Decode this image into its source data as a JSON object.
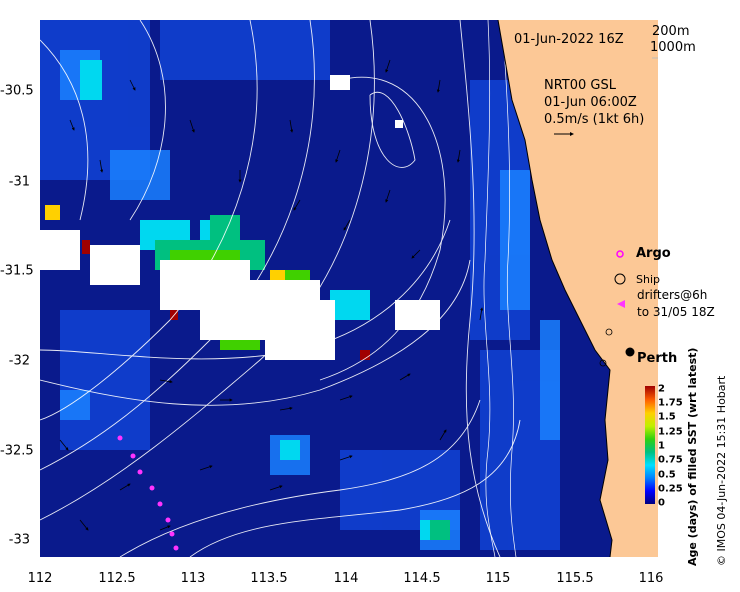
{
  "map": {
    "date_label": "01-Jun-2022 16Z",
    "contour_label_1": "200m",
    "contour_label_2": "1000m",
    "model_line1": "NRT00 GSL",
    "model_line2": "01-Jun 06:00Z",
    "vector_scale": "0.5m/s (1kt 6h)",
    "city": "Perth"
  },
  "legend": {
    "argo": "Argo",
    "ship": "Ship",
    "drifters_line1": "drifters@6h",
    "drifters_line2": "to 31/05 18Z"
  },
  "axes": {
    "x_ticks": [
      "112",
      "112.5",
      "113",
      "113.5",
      "114",
      "114.5",
      "115",
      "115.5",
      "116"
    ],
    "y_ticks": [
      "-30.5",
      "-31",
      "-31.5",
      "-32",
      "-32.5",
      "-33"
    ],
    "x_range": [
      112,
      116
    ],
    "y_range": [
      -33.1,
      -30.0
    ]
  },
  "colorbar": {
    "label": "Age (days) of filled SST (wrt latest)",
    "ticks": [
      "2",
      "1.75",
      "1.5",
      "1.25",
      "1",
      "0.75",
      "0.5",
      "0.25",
      "0"
    ],
    "range": [
      0,
      2
    ],
    "colors": [
      "#00007f",
      "#0000ff",
      "#0080ff",
      "#00e0ff",
      "#00c080",
      "#30d010",
      "#c0f000",
      "#ffd000",
      "#ff6000",
      "#a00000"
    ]
  },
  "credit": "© IMOS 04-Jun-2022 15:31 Hobart",
  "colors": {
    "ocean": "#0a1a8c",
    "land": "#fcc896",
    "argo": "#ff00ff",
    "drifter": "#ff33ff"
  }
}
